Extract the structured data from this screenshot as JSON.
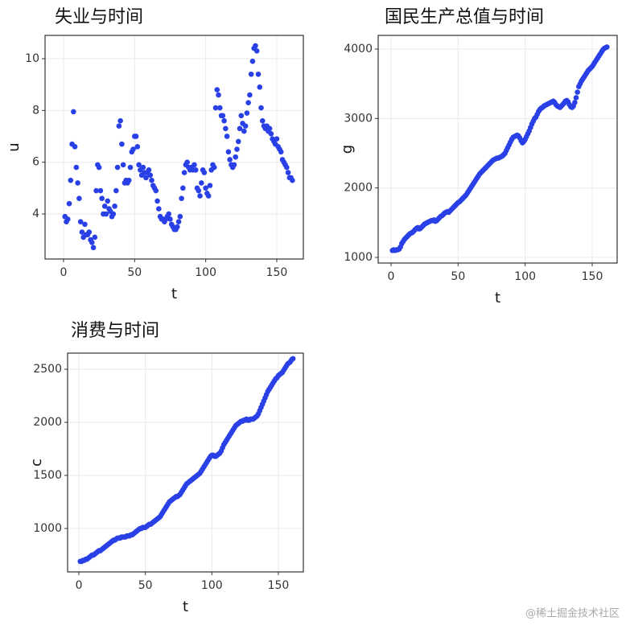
{
  "chart_data": [
    {
      "type": "scatter",
      "title": "失业与时间",
      "x_label": "t",
      "y_label": "u",
      "color": "#2940e6",
      "grid": true,
      "xlim": [
        -13,
        168.7
      ],
      "xticks": [
        0,
        50,
        100,
        150
      ],
      "ylim": [
        2.26,
        10.9
      ],
      "yticks": [
        4,
        6,
        8,
        10
      ],
      "x": [
        1,
        2,
        3,
        4,
        5,
        6,
        7,
        8,
        9,
        10,
        11,
        12,
        13,
        14,
        15,
        16,
        17,
        18,
        19,
        20,
        21,
        22,
        23,
        24,
        25,
        26,
        27,
        28,
        29,
        30,
        31,
        32,
        33,
        34,
        35,
        36,
        37,
        38,
        39,
        40,
        41,
        42,
        43,
        44,
        45,
        46,
        47,
        48,
        49,
        50,
        51,
        52,
        53,
        54,
        55,
        56,
        57,
        58,
        59,
        60,
        61,
        62,
        63,
        64,
        65,
        66,
        67,
        68,
        69,
        70,
        71,
        72,
        73,
        74,
        75,
        76,
        77,
        78,
        79,
        80,
        81,
        82,
        83,
        84,
        85,
        86,
        87,
        88,
        89,
        90,
        91,
        92,
        93,
        94,
        95,
        96,
        97,
        98,
        99,
        100,
        101,
        102,
        103,
        104,
        105,
        106,
        107,
        108,
        109,
        110,
        111,
        112,
        113,
        114,
        115,
        116,
        117,
        118,
        119,
        120,
        121,
        122,
        123,
        124,
        125,
        126,
        127,
        128,
        129,
        130,
        131,
        132,
        133,
        134,
        135,
        136,
        137,
        138,
        139,
        140,
        141,
        142,
        143,
        144,
        145,
        146,
        147,
        148,
        149,
        150,
        151,
        152,
        153,
        154,
        155,
        156,
        157,
        158,
        159,
        160,
        161
      ],
      "values": [
        3.9,
        3.7,
        3.8,
        4.4,
        5.3,
        6.7,
        7.95,
        6.6,
        5.8,
        5.2,
        4.6,
        3.7,
        3.3,
        3.1,
        3.6,
        3.2,
        3.2,
        3.3,
        3.0,
        2.9,
        2.7,
        3.1,
        4.9,
        5.9,
        5.8,
        4.9,
        4.6,
        4.0,
        4.3,
        4.0,
        4.5,
        4.2,
        4.1,
        3.9,
        4.0,
        4.3,
        4.9,
        5.8,
        7.4,
        7.6,
        6.7,
        5.9,
        5.2,
        5.3,
        5.2,
        5.3,
        5.8,
        6.4,
        6.5,
        7.0,
        7.0,
        6.6,
        5.9,
        5.7,
        5.5,
        5.8,
        5.6,
        5.4,
        5.6,
        5.7,
        5.5,
        5.3,
        5.1,
        5.0,
        4.9,
        4.5,
        4.2,
        3.9,
        3.8,
        3.8,
        3.7,
        3.8,
        3.9,
        4.0,
        3.8,
        3.6,
        3.5,
        3.4,
        3.4,
        3.5,
        3.7,
        3.9,
        4.6,
        5.0,
        5.6,
        5.9,
        6.0,
        5.8,
        5.7,
        5.8,
        5.7,
        5.9,
        5.7,
        5.0,
        4.9,
        4.7,
        5.2,
        5.7,
        5.6,
        5.0,
        4.8,
        4.7,
        5.1,
        5.7,
        5.9,
        5.8,
        8.1,
        8.8,
        8.6,
        8.1,
        7.8,
        7.8,
        7.6,
        7.3,
        7.0,
        6.4,
        6.1,
        5.9,
        5.8,
        5.9,
        6.2,
        6.5,
        6.8,
        7.3,
        7.8,
        7.5,
        7.2,
        7.4,
        7.9,
        8.3,
        8.6,
        9.4,
        9.9,
        10.4,
        10.5,
        10.3,
        9.4,
        8.9,
        8.1,
        7.6,
        7.4,
        7.3,
        7.4,
        7.2,
        7.3,
        7.1,
        6.9,
        6.8,
        6.7,
        6.9,
        6.6,
        6.5,
        6.4,
        6.1,
        6.0,
        5.9,
        5.8,
        5.6,
        5.4,
        5.4,
        5.3
      ]
    },
    {
      "type": "scatter",
      "title": "国民生产总值与时间",
      "x_label": "t",
      "y_label": "g",
      "color": "#2940e6",
      "grid": true,
      "xlim": [
        -9.6,
        168.6
      ],
      "xticks": [
        0,
        50,
        100,
        150
      ],
      "ylim": [
        919,
        4197
      ],
      "yticks": [
        1000,
        2000,
        3000,
        4000
      ],
      "x": [
        1,
        2,
        3,
        4,
        5,
        6,
        7,
        8,
        9,
        10,
        11,
        12,
        13,
        14,
        15,
        16,
        17,
        18,
        19,
        20,
        21,
        22,
        23,
        24,
        25,
        26,
        27,
        28,
        29,
        30,
        31,
        32,
        33,
        34,
        35,
        36,
        37,
        38,
        39,
        40,
        41,
        42,
        43,
        44,
        45,
        46,
        47,
        48,
        49,
        50,
        51,
        52,
        53,
        54,
        55,
        56,
        57,
        58,
        59,
        60,
        61,
        62,
        63,
        64,
        65,
        66,
        67,
        68,
        69,
        70,
        71,
        72,
        73,
        74,
        75,
        76,
        77,
        78,
        79,
        80,
        81,
        82,
        83,
        84,
        85,
        86,
        87,
        88,
        89,
        90,
        91,
        92,
        93,
        94,
        95,
        96,
        97,
        98,
        99,
        100,
        101,
        102,
        103,
        104,
        105,
        106,
        107,
        108,
        109,
        110,
        111,
        112,
        113,
        114,
        115,
        116,
        117,
        118,
        119,
        120,
        121,
        122,
        123,
        124,
        125,
        126,
        127,
        128,
        129,
        130,
        131,
        132,
        133,
        134,
        135,
        136,
        137,
        138,
        139,
        140,
        141,
        142,
        143,
        144,
        145,
        146,
        147,
        148,
        149,
        150,
        151,
        152,
        153,
        154,
        155,
        156,
        157,
        158,
        159,
        160,
        161
      ],
      "values": [
        1100,
        1110,
        1100,
        1110,
        1110,
        1120,
        1150,
        1200,
        1230,
        1260,
        1280,
        1300,
        1320,
        1340,
        1350,
        1360,
        1380,
        1400,
        1420,
        1430,
        1410,
        1420,
        1440,
        1460,
        1480,
        1490,
        1500,
        1510,
        1520,
        1530,
        1530,
        1540,
        1520,
        1530,
        1550,
        1570,
        1590,
        1600,
        1620,
        1640,
        1650,
        1660,
        1650,
        1670,
        1690,
        1710,
        1730,
        1750,
        1770,
        1790,
        1800,
        1820,
        1840,
        1860,
        1880,
        1900,
        1930,
        1960,
        1990,
        2020,
        2050,
        2080,
        2110,
        2140,
        2170,
        2200,
        2220,
        2240,
        2260,
        2280,
        2300,
        2320,
        2340,
        2360,
        2380,
        2400,
        2410,
        2420,
        2430,
        2430,
        2440,
        2450,
        2460,
        2480,
        2500,
        2540,
        2580,
        2620,
        2660,
        2700,
        2730,
        2740,
        2750,
        2760,
        2750,
        2720,
        2680,
        2650,
        2670,
        2700,
        2740,
        2780,
        2820,
        2870,
        2920,
        2960,
        3000,
        3020,
        3060,
        3100,
        3130,
        3150,
        3160,
        3180,
        3190,
        3200,
        3210,
        3220,
        3230,
        3240,
        3250,
        3230,
        3200,
        3180,
        3170,
        3160,
        3180,
        3200,
        3220,
        3250,
        3260,
        3240,
        3200,
        3170,
        3160,
        3180,
        3230,
        3300,
        3380,
        3460,
        3500,
        3540,
        3570,
        3600,
        3630,
        3660,
        3690,
        3710,
        3730,
        3750,
        3780,
        3810,
        3840,
        3870,
        3900,
        3930,
        3960,
        3990,
        4010,
        4020,
        4030
      ]
    },
    {
      "type": "scatter",
      "title": "消费与时间",
      "x_label": "t",
      "y_label": "c",
      "color": "#2940e6",
      "grid": true,
      "xlim": [
        -8.5,
        168.8
      ],
      "xticks": [
        0,
        50,
        100,
        150
      ],
      "ylim": [
        591,
        2652
      ],
      "yticks": [
        1000,
        1500,
        2000,
        2500
      ],
      "x": [
        1,
        2,
        3,
        4,
        5,
        6,
        7,
        8,
        9,
        10,
        11,
        12,
        13,
        14,
        15,
        16,
        17,
        18,
        19,
        20,
        21,
        22,
        23,
        24,
        25,
        26,
        27,
        28,
        29,
        30,
        31,
        32,
        33,
        34,
        35,
        36,
        37,
        38,
        39,
        40,
        41,
        42,
        43,
        44,
        45,
        46,
        47,
        48,
        49,
        50,
        51,
        52,
        53,
        54,
        55,
        56,
        57,
        58,
        59,
        60,
        61,
        62,
        63,
        64,
        65,
        66,
        67,
        68,
        69,
        70,
        71,
        72,
        73,
        74,
        75,
        76,
        77,
        78,
        79,
        80,
        81,
        82,
        83,
        84,
        85,
        86,
        87,
        88,
        89,
        90,
        91,
        92,
        93,
        94,
        95,
        96,
        97,
        98,
        99,
        100,
        101,
        102,
        103,
        104,
        105,
        106,
        107,
        108,
        109,
        110,
        111,
        112,
        113,
        114,
        115,
        116,
        117,
        118,
        119,
        120,
        121,
        122,
        123,
        124,
        125,
        126,
        127,
        128,
        129,
        130,
        131,
        132,
        133,
        134,
        135,
        136,
        137,
        138,
        139,
        140,
        141,
        142,
        143,
        144,
        145,
        146,
        147,
        148,
        149,
        150,
        151,
        152,
        153,
        154,
        155,
        156,
        157,
        158,
        159,
        160,
        161
      ],
      "values": [
        690,
        690,
        700,
        700,
        710,
        710,
        720,
        730,
        740,
        750,
        750,
        760,
        770,
        780,
        790,
        790,
        800,
        810,
        820,
        830,
        840,
        850,
        860,
        870,
        880,
        890,
        890,
        900,
        910,
        910,
        910,
        920,
        920,
        920,
        920,
        930,
        930,
        930,
        940,
        940,
        950,
        960,
        970,
        980,
        990,
        1000,
        1000,
        1010,
        1010,
        1010,
        1020,
        1030,
        1040,
        1040,
        1050,
        1060,
        1070,
        1080,
        1090,
        1100,
        1110,
        1130,
        1150,
        1170,
        1190,
        1210,
        1230,
        1250,
        1260,
        1270,
        1280,
        1290,
        1300,
        1300,
        1310,
        1320,
        1340,
        1360,
        1380,
        1400,
        1420,
        1430,
        1440,
        1450,
        1460,
        1470,
        1480,
        1490,
        1500,
        1510,
        1520,
        1540,
        1560,
        1580,
        1600,
        1620,
        1640,
        1660,
        1680,
        1690,
        1690,
        1680,
        1680,
        1690,
        1700,
        1710,
        1730,
        1760,
        1790,
        1810,
        1830,
        1850,
        1870,
        1890,
        1910,
        1930,
        1950,
        1970,
        1980,
        1990,
        2000,
        2010,
        2010,
        2020,
        2020,
        2030,
        2020,
        2020,
        2030,
        2030,
        2030,
        2040,
        2050,
        2060,
        2080,
        2110,
        2140,
        2170,
        2200,
        2230,
        2260,
        2290,
        2310,
        2330,
        2350,
        2370,
        2390,
        2410,
        2420,
        2440,
        2450,
        2460,
        2470,
        2490,
        2510,
        2530,
        2550,
        2560,
        2570,
        2590,
        2600
      ]
    }
  ],
  "watermark": "@稀土掘金技术社区"
}
